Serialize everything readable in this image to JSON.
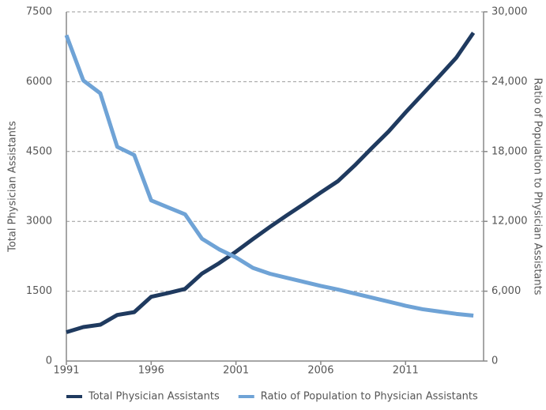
{
  "chart_data": {
    "type": "line",
    "x": [
      1991,
      1992,
      1993,
      1994,
      1995,
      1996,
      1997,
      1998,
      1999,
      2000,
      2001,
      2002,
      2003,
      2004,
      2005,
      2006,
      2007,
      2008,
      2009,
      2010,
      2011,
      2012,
      2013,
      2014,
      2015
    ],
    "series": [
      {
        "name": "Total Physician Assistants",
        "color": "#1f3a5f",
        "values": [
          620,
          730,
          780,
          990,
          1050,
          1380,
          1460,
          1550,
          1880,
          2100,
          2350,
          2620,
          2880,
          3130,
          3370,
          3620,
          3860,
          4200,
          4570,
          4930,
          5340,
          5730,
          6120,
          6520,
          7050
        ]
      },
      {
        "name": "Ratio of Population to Physician Assistants",
        "color": "#6fa3d6",
        "axis": "y2",
        "values": [
          28000,
          24100,
          23000,
          18400,
          17700,
          13800,
          13200,
          12600,
          10500,
          9600,
          8900,
          8000,
          7500,
          7150,
          6800,
          6450,
          6150,
          5800,
          5450,
          5100,
          4750,
          4450,
          4250,
          4050,
          3900
        ]
      }
    ],
    "ylabel": "Total Physician Assistants",
    "y2label": "Ratio of Population to Physician Assistants",
    "xlim": [
      1991,
      2015.6
    ],
    "xticks": [
      1991,
      1996,
      2001,
      2006,
      2011
    ],
    "ylim": [
      0,
      7500
    ],
    "yticks": [
      0,
      1500,
      3000,
      4500,
      6000,
      7500
    ],
    "y2lim": [
      0,
      30000
    ],
    "y2ticks": [
      0,
      {
        "value": 6000,
        "label": "6,000"
      },
      {
        "value": 12000,
        "label": "12,000"
      },
      {
        "value": 18000,
        "label": "18,000"
      },
      {
        "value": 24000,
        "label": "24,000"
      },
      {
        "value": 30000,
        "label": "30,000"
      }
    ],
    "grid": true,
    "legend": "bottom"
  }
}
